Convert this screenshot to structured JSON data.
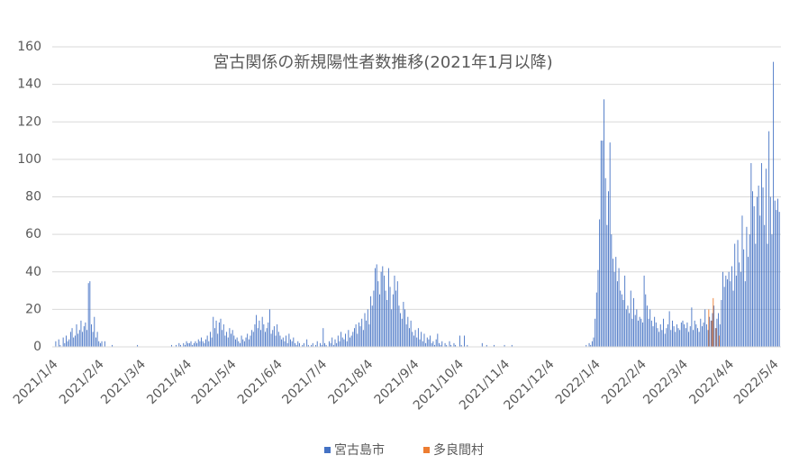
{
  "chart_data": {
    "type": "bar",
    "title": "宮古関係の新規陽性者数推移(2021年1月以降)",
    "categories": [
      "2021/1/4",
      null,
      null,
      null,
      null,
      null,
      null,
      null,
      null,
      null,
      null,
      null,
      null,
      null,
      null,
      null,
      null,
      null,
      null,
      null,
      null,
      null,
      null,
      null,
      null,
      null,
      null,
      null,
      null,
      null,
      null,
      "2021/2/4",
      null,
      null,
      null,
      null,
      null,
      null,
      null,
      null,
      null,
      null,
      null,
      null,
      null,
      null,
      null,
      null,
      null,
      null,
      null,
      null,
      null,
      null,
      null,
      null,
      null,
      null,
      null,
      "2021/3/4",
      null,
      null,
      null,
      null,
      null,
      null,
      null,
      null,
      null,
      null,
      null,
      null,
      null,
      null,
      null,
      null,
      null,
      null,
      null,
      null,
      null,
      null,
      null,
      null,
      null,
      null,
      null,
      null,
      null,
      null,
      "2021/4/4",
      null,
      null,
      null,
      null,
      null,
      null,
      null,
      null,
      null,
      null,
      null,
      null,
      null,
      null,
      null,
      null,
      null,
      null,
      null,
      null,
      null,
      null,
      null,
      null,
      null,
      null,
      null,
      null,
      null,
      "2021/5/4",
      null,
      null,
      null,
      null,
      null,
      null,
      null,
      null,
      null,
      null,
      null,
      null,
      null,
      null,
      null,
      null,
      null,
      null,
      null,
      null,
      null,
      null,
      null,
      null,
      null,
      null,
      null,
      null,
      null,
      null,
      "2021/6/4",
      null,
      null,
      null,
      null,
      null,
      null,
      null,
      null,
      null,
      null,
      null,
      null,
      null,
      null,
      null,
      null,
      null,
      null,
      null,
      null,
      null,
      null,
      null,
      null,
      null,
      null,
      null,
      null,
      null,
      "2021/7/4",
      null,
      null,
      null,
      null,
      null,
      null,
      null,
      null,
      null,
      null,
      null,
      null,
      null,
      null,
      null,
      null,
      null,
      null,
      null,
      null,
      null,
      null,
      null,
      null,
      null,
      null,
      null,
      null,
      null,
      null,
      "2021/8/4",
      null,
      null,
      null,
      null,
      null,
      null,
      null,
      null,
      null,
      null,
      null,
      null,
      null,
      null,
      null,
      null,
      null,
      null,
      null,
      null,
      null,
      null,
      null,
      null,
      null,
      null,
      null,
      null,
      null,
      null,
      "2021/9/4",
      null,
      null,
      null,
      null,
      null,
      null,
      null,
      null,
      null,
      null,
      null,
      null,
      null,
      null,
      null,
      null,
      null,
      null,
      null,
      null,
      null,
      null,
      null,
      null,
      null,
      null,
      null,
      null,
      null,
      "2021/10/4",
      null,
      null,
      null,
      null,
      null,
      null,
      null,
      null,
      null,
      null,
      null,
      null,
      null,
      null,
      null,
      null,
      null,
      null,
      null,
      null,
      null,
      null,
      null,
      null,
      null,
      null,
      null,
      null,
      null,
      null,
      "2021/11/4",
      null,
      null,
      null,
      null,
      null,
      null,
      null,
      null,
      null,
      null,
      null,
      null,
      null,
      null,
      null,
      null,
      null,
      null,
      null,
      null,
      null,
      null,
      null,
      null,
      null,
      null,
      null,
      null,
      null,
      "2021/12/4",
      null,
      null,
      null,
      null,
      null,
      null,
      null,
      null,
      null,
      null,
      null,
      null,
      null,
      null,
      null,
      null,
      null,
      null,
      null,
      null,
      null,
      null,
      null,
      null,
      null,
      null,
      null,
      null,
      null,
      null,
      "2022/1/4",
      null,
      null,
      null,
      null,
      null,
      null,
      null,
      null,
      null,
      null,
      null,
      null,
      null,
      null,
      null,
      null,
      null,
      null,
      null,
      null,
      null,
      null,
      null,
      null,
      null,
      null,
      null,
      null,
      null,
      null,
      "2022/2/4",
      null,
      null,
      null,
      null,
      null,
      null,
      null,
      null,
      null,
      null,
      null,
      null,
      null,
      null,
      null,
      null,
      null,
      null,
      null,
      null,
      null,
      null,
      null,
      null,
      null,
      null,
      null,
      "2022/3/4",
      null,
      null,
      null,
      null,
      null,
      null,
      null,
      null,
      null,
      null,
      null,
      null,
      null,
      null,
      null,
      null,
      null,
      null,
      null,
      null,
      null,
      null,
      null,
      null,
      null,
      null,
      null,
      null,
      null,
      null,
      "2022/4/4",
      null,
      null,
      null,
      null,
      null,
      null,
      null,
      null,
      null,
      null,
      null,
      null,
      null,
      null,
      null,
      null,
      null,
      null,
      null,
      null,
      null,
      null,
      null,
      null,
      null,
      null,
      null,
      null,
      null,
      "2022/5/4",
      null,
      null
    ],
    "series": [
      {
        "name": "宮古島市",
        "color": "#4472c4",
        "values": [
          3,
          0,
          4,
          1,
          0,
          5,
          2,
          6,
          3,
          4,
          8,
          10,
          5,
          6,
          12,
          7,
          9,
          14,
          8,
          11,
          13,
          9,
          34,
          35,
          12,
          8,
          16,
          5,
          8,
          3,
          2,
          3,
          0,
          3,
          0,
          0,
          0,
          0,
          1,
          0,
          0,
          0,
          0,
          0,
          0,
          0,
          0,
          0,
          0,
          0,
          0,
          0,
          0,
          0,
          0,
          1,
          0,
          0,
          0,
          0,
          0,
          0,
          0,
          0,
          0,
          0,
          0,
          0,
          0,
          0,
          0,
          0,
          0,
          0,
          0,
          0,
          0,
          0,
          1,
          0,
          0,
          1,
          0,
          2,
          1,
          0,
          2,
          1,
          3,
          2,
          2,
          3,
          1,
          2,
          3,
          2,
          4,
          3,
          5,
          3,
          2,
          4,
          6,
          3,
          8,
          5,
          16,
          10,
          14,
          7,
          13,
          15,
          9,
          12,
          6,
          8,
          5,
          10,
          7,
          9,
          6,
          4,
          5,
          3,
          2,
          6,
          4,
          3,
          5,
          7,
          4,
          6,
          9,
          8,
          12,
          17,
          10,
          14,
          9,
          16,
          12,
          8,
          10,
          13,
          20,
          7,
          9,
          11,
          6,
          12,
          8,
          6,
          4,
          5,
          3,
          6,
          2,
          7,
          4,
          3,
          5,
          2,
          1,
          3,
          2,
          0,
          1,
          2,
          0,
          4,
          1,
          0,
          1,
          2,
          0,
          1,
          3,
          0,
          2,
          1,
          10,
          2,
          1,
          0,
          3,
          2,
          5,
          1,
          4,
          2,
          6,
          3,
          8,
          5,
          4,
          7,
          3,
          9,
          5,
          6,
          8,
          10,
          12,
          7,
          13,
          11,
          15,
          9,
          18,
          14,
          20,
          12,
          27,
          22,
          30,
          42,
          44,
          35,
          28,
          40,
          43,
          38,
          30,
          25,
          42,
          32,
          20,
          28,
          38,
          30,
          35,
          22,
          18,
          15,
          24,
          20,
          12,
          16,
          10,
          14,
          8,
          6,
          9,
          5,
          10,
          4,
          8,
          3,
          7,
          2,
          5,
          4,
          6,
          2,
          3,
          1,
          4,
          7,
          2,
          1,
          3,
          0,
          2,
          1,
          0,
          3,
          1,
          0,
          2,
          1,
          0,
          0,
          6,
          1,
          0,
          6,
          0,
          1,
          0,
          0,
          0,
          0,
          0,
          0,
          0,
          0,
          0,
          2,
          0,
          0,
          1,
          0,
          0,
          0,
          0,
          1,
          0,
          0,
          0,
          0,
          0,
          0,
          1,
          0,
          0,
          0,
          0,
          1,
          0,
          0,
          0,
          0,
          0,
          0,
          0,
          0,
          0,
          0,
          0,
          0,
          0,
          0,
          0,
          0,
          0,
          0,
          0,
          0,
          0,
          0,
          0,
          0,
          0,
          0,
          0,
          0,
          0,
          0,
          0,
          0,
          0,
          0,
          0,
          0,
          0,
          0,
          0,
          0,
          0,
          0,
          0,
          0,
          0,
          0,
          0,
          0,
          0,
          1,
          0,
          2,
          1,
          3,
          5,
          15,
          29,
          41,
          68,
          110,
          110,
          132,
          90,
          65,
          83,
          109,
          60,
          47,
          40,
          48,
          35,
          42,
          30,
          28,
          25,
          38,
          20,
          22,
          18,
          30,
          15,
          26,
          17,
          20,
          14,
          16,
          15,
          13,
          38,
          28,
          22,
          15,
          20,
          14,
          11,
          16,
          13,
          10,
          8,
          12,
          9,
          15,
          7,
          10,
          12,
          19,
          9,
          14,
          11,
          8,
          12,
          10,
          9,
          13,
          14,
          12,
          10,
          13,
          8,
          11,
          21,
          9,
          14,
          12,
          10,
          8,
          15,
          11,
          13,
          20,
          12,
          9,
          16,
          14,
          18,
          22,
          10,
          15,
          18,
          12,
          25,
          40,
          32,
          38,
          36,
          40,
          35,
          43,
          30,
          55,
          38,
          57,
          45,
          40,
          70,
          52,
          35,
          64,
          48,
          60,
          98,
          83,
          75,
          55,
          80,
          86,
          70,
          98,
          85,
          65,
          95,
          55,
          115,
          80,
          60,
          152,
          78,
          73,
          79,
          72
        ]
      },
      {
        "name": "多良間村",
        "color": "#ed7d31",
        "values": [
          0,
          0,
          0,
          0,
          0,
          0,
          0,
          0,
          0,
          0,
          0,
          0,
          0,
          0,
          0,
          0,
          0,
          0,
          0,
          0,
          0,
          0,
          0,
          0,
          0,
          0,
          0,
          0,
          0,
          0,
          0,
          0,
          0,
          0,
          0,
          0,
          0,
          0,
          0,
          0,
          0,
          0,
          0,
          0,
          0,
          0,
          0,
          0,
          0,
          0,
          0,
          0,
          0,
          0,
          0,
          0,
          0,
          0,
          0,
          0,
          0,
          0,
          0,
          0,
          0,
          0,
          0,
          0,
          0,
          0,
          0,
          0,
          0,
          0,
          0,
          0,
          0,
          0,
          0,
          0,
          0,
          0,
          0,
          0,
          0,
          0,
          0,
          0,
          0,
          0,
          0,
          0,
          0,
          0,
          0,
          0,
          0,
          0,
          0,
          0,
          0,
          0,
          0,
          0,
          0,
          0,
          0,
          0,
          0,
          0,
          0,
          0,
          0,
          0,
          0,
          0,
          0,
          0,
          0,
          0,
          0,
          0,
          0,
          0,
          0,
          0,
          0,
          0,
          0,
          0,
          0,
          0,
          0,
          0,
          0,
          0,
          0,
          0,
          0,
          0,
          0,
          0,
          0,
          0,
          0,
          0,
          0,
          0,
          0,
          0,
          0,
          0,
          0,
          0,
          0,
          0,
          0,
          0,
          0,
          0,
          0,
          0,
          0,
          0,
          0,
          0,
          0,
          0,
          0,
          0,
          0,
          0,
          0,
          0,
          0,
          0,
          0,
          0,
          0,
          0,
          0,
          0,
          0,
          0,
          0,
          0,
          0,
          0,
          0,
          0,
          0,
          0,
          0,
          0,
          0,
          0,
          0,
          0,
          0,
          0,
          0,
          0,
          0,
          0,
          0,
          0,
          0,
          0,
          0,
          0,
          0,
          0,
          0,
          0,
          0,
          0,
          0,
          0,
          0,
          0,
          0,
          0,
          0,
          0,
          0,
          0,
          0,
          0,
          0,
          0,
          0,
          0,
          0,
          0,
          0,
          0,
          0,
          0,
          0,
          0,
          0,
          0,
          0,
          0,
          0,
          0,
          0,
          0,
          0,
          0,
          0,
          0,
          0,
          0,
          0,
          0,
          0,
          0,
          0,
          0,
          0,
          0,
          0,
          0,
          0,
          0,
          0,
          0,
          0,
          0,
          0,
          0,
          0,
          0,
          0,
          0,
          0,
          0,
          0,
          0,
          0,
          0,
          0,
          0,
          0,
          0,
          0,
          0,
          0,
          0,
          0,
          0,
          0,
          0,
          0,
          0,
          0,
          0,
          0,
          0,
          0,
          0,
          0,
          0,
          0,
          0,
          0,
          0,
          0,
          0,
          0,
          0,
          0,
          0,
          0,
          0,
          0,
          0,
          0,
          0,
          0,
          0,
          0,
          0,
          0,
          0,
          0,
          0,
          0,
          0,
          0,
          0,
          0,
          0,
          0,
          0,
          0,
          0,
          0,
          0,
          0,
          0,
          0,
          0,
          0,
          0,
          0,
          0,
          0,
          0,
          0,
          0,
          0,
          0,
          0,
          0,
          0,
          0,
          0,
          0,
          0,
          0,
          0,
          0,
          0,
          0,
          0,
          0,
          0,
          0,
          0,
          0,
          0,
          0,
          0,
          0,
          0,
          0,
          0,
          0,
          0,
          0,
          0,
          0,
          0,
          0,
          0,
          0,
          0,
          0,
          0,
          0,
          0,
          0,
          0,
          0,
          0,
          0,
          0,
          0,
          0,
          0,
          0,
          0,
          0,
          0,
          0,
          0,
          0,
          0,
          0,
          0,
          0,
          0,
          0,
          0,
          0,
          0,
          0,
          0,
          0,
          0,
          0,
          0,
          0,
          0,
          0,
          0,
          0,
          0,
          0,
          0,
          0,
          0,
          0,
          0,
          0,
          0,
          0,
          20,
          0,
          14,
          26,
          0,
          10,
          0,
          6,
          0,
          0,
          0,
          0,
          0,
          0,
          0,
          0,
          0,
          0,
          0,
          0,
          0,
          0,
          0,
          0,
          0,
          0,
          0,
          0,
          0,
          0,
          0,
          0,
          0,
          0,
          0,
          0,
          0,
          0,
          0,
          0,
          0,
          0,
          0,
          0,
          0,
          0,
          0,
          0,
          0
        ]
      }
    ],
    "ylim": [
      0,
      160
    ],
    "yticks": [
      0,
      20,
      40,
      60,
      80,
      100,
      120,
      140,
      160
    ],
    "grid": true,
    "legend": "bottom"
  }
}
